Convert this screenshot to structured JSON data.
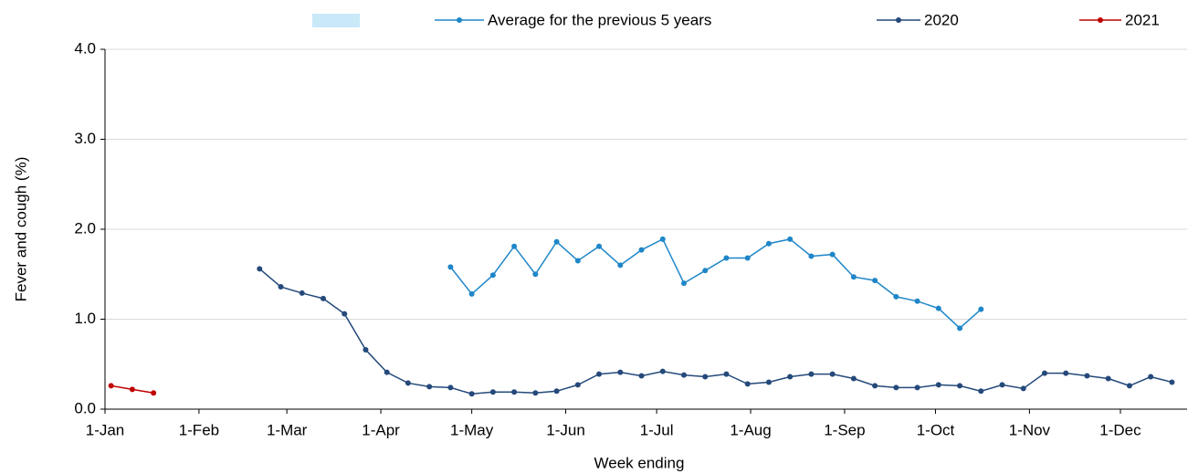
{
  "chart_data": {
    "type": "line",
    "y_label": "Fever and cough (%)",
    "x_label": "Week ending",
    "xlim": [
      0,
      357
    ],
    "xticks": [
      {
        "value": 0,
        "label": "1-Jan"
      },
      {
        "value": 31,
        "label": "1-Feb"
      },
      {
        "value": 60,
        "label": "1-Mar"
      },
      {
        "value": 91,
        "label": "1-Apr"
      },
      {
        "value": 121,
        "label": "1-May"
      },
      {
        "value": 152,
        "label": "1-Jun"
      },
      {
        "value": 182,
        "label": "1-Jul"
      },
      {
        "value": 213,
        "label": "1-Aug"
      },
      {
        "value": 244,
        "label": "1-Sep"
      },
      {
        "value": 274,
        "label": "1-Oct"
      },
      {
        "value": 305,
        "label": "1-Nov"
      },
      {
        "value": 335,
        "label": "1-Dec"
      }
    ],
    "ylim": [
      0,
      4
    ],
    "yticks": [
      {
        "value": 0,
        "label": "0.0"
      },
      {
        "value": 1,
        "label": "1.0"
      },
      {
        "value": 2,
        "label": "2.0"
      },
      {
        "value": 3,
        "label": "3.0"
      },
      {
        "value": 4,
        "label": "4.0"
      }
    ],
    "grid": true,
    "series": [
      {
        "name": "Average for the previous 5 years",
        "color": "#1f86c8",
        "x": [
          114,
          121,
          128,
          135,
          142,
          149,
          156,
          163,
          170,
          177,
          184,
          191,
          198,
          205,
          212,
          219,
          226,
          233,
          240,
          247,
          254,
          261,
          268,
          275,
          282,
          289
        ],
        "values": [
          1.58,
          1.28,
          1.49,
          1.81,
          1.5,
          1.86,
          1.65,
          1.81,
          1.6,
          1.77,
          1.89,
          1.4,
          1.54,
          1.68,
          1.68,
          1.84,
          1.89,
          1.7,
          1.72,
          1.47,
          1.43,
          1.25,
          1.2,
          1.12,
          0.9,
          1.11
        ]
      },
      {
        "name": "2020",
        "color": "#24497a",
        "x": [
          51,
          58,
          65,
          72,
          79,
          86,
          93,
          100,
          107,
          114,
          121,
          128,
          135,
          142,
          149,
          156,
          163,
          170,
          177,
          184,
          191,
          198,
          205,
          212,
          219,
          226,
          233,
          240,
          247,
          254,
          261,
          268,
          275,
          282,
          289,
          296,
          303,
          310,
          317,
          324,
          331,
          338,
          345,
          352
        ],
        "values": [
          1.56,
          1.36,
          1.29,
          1.23,
          1.06,
          0.66,
          0.41,
          0.29,
          0.25,
          0.24,
          0.17,
          0.19,
          0.19,
          0.18,
          0.2,
          0.27,
          0.39,
          0.41,
          0.37,
          0.42,
          0.38,
          0.36,
          0.39,
          0.28,
          0.3,
          0.36,
          0.39,
          0.39,
          0.34,
          0.26,
          0.24,
          0.24,
          0.27,
          0.26,
          0.2,
          0.27,
          0.23,
          0.4,
          0.4,
          0.37,
          0.34,
          0.26,
          0.36,
          0.3
        ]
      },
      {
        "name": "2021",
        "color": "#c00000",
        "x": [
          2,
          9,
          16
        ],
        "values": [
          0.26,
          0.22,
          0.18
        ]
      }
    ]
  }
}
